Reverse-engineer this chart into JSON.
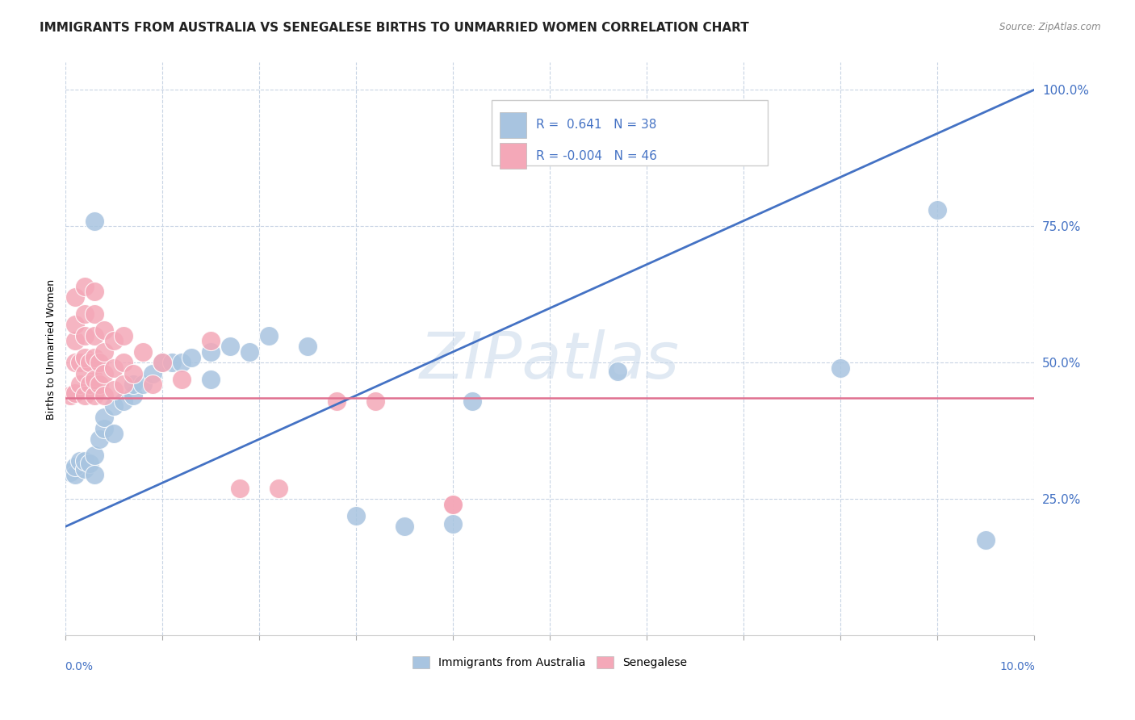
{
  "title": "IMMIGRANTS FROM AUSTRALIA VS SENEGALESE BIRTHS TO UNMARRIED WOMEN CORRELATION CHART",
  "source": "Source: ZipAtlas.com",
  "ylabel": "Births to Unmarried Women",
  "legend_label_blue": "Immigrants from Australia",
  "legend_label_pink": "Senegalese",
  "R_blue": 0.641,
  "N_blue": 38,
  "R_pink": -0.004,
  "N_pink": 46,
  "watermark": "ZIPatlas",
  "blue_scatter": [
    [
      0.0005,
      0.3
    ],
    [
      0.001,
      0.295
    ],
    [
      0.001,
      0.31
    ],
    [
      0.0015,
      0.32
    ],
    [
      0.002,
      0.305
    ],
    [
      0.002,
      0.32
    ],
    [
      0.0025,
      0.315
    ],
    [
      0.003,
      0.33
    ],
    [
      0.003,
      0.295
    ],
    [
      0.003,
      0.76
    ],
    [
      0.0035,
      0.36
    ],
    [
      0.004,
      0.38
    ],
    [
      0.004,
      0.4
    ],
    [
      0.005,
      0.37
    ],
    [
      0.005,
      0.42
    ],
    [
      0.006,
      0.43
    ],
    [
      0.007,
      0.44
    ],
    [
      0.007,
      0.46
    ],
    [
      0.008,
      0.46
    ],
    [
      0.009,
      0.48
    ],
    [
      0.01,
      0.5
    ],
    [
      0.011,
      0.5
    ],
    [
      0.012,
      0.5
    ],
    [
      0.013,
      0.51
    ],
    [
      0.015,
      0.52
    ],
    [
      0.015,
      0.47
    ],
    [
      0.017,
      0.53
    ],
    [
      0.019,
      0.52
    ],
    [
      0.021,
      0.55
    ],
    [
      0.025,
      0.53
    ],
    [
      0.03,
      0.22
    ],
    [
      0.035,
      0.2
    ],
    [
      0.04,
      0.205
    ],
    [
      0.042,
      0.43
    ],
    [
      0.057,
      0.485
    ],
    [
      0.08,
      0.49
    ],
    [
      0.09,
      0.78
    ],
    [
      0.095,
      0.175
    ]
  ],
  "pink_scatter": [
    [
      0.0005,
      0.44
    ],
    [
      0.001,
      0.445
    ],
    [
      0.001,
      0.5
    ],
    [
      0.001,
      0.54
    ],
    [
      0.001,
      0.57
    ],
    [
      0.001,
      0.62
    ],
    [
      0.0015,
      0.46
    ],
    [
      0.0015,
      0.5
    ],
    [
      0.002,
      0.44
    ],
    [
      0.002,
      0.48
    ],
    [
      0.002,
      0.51
    ],
    [
      0.002,
      0.55
    ],
    [
      0.002,
      0.59
    ],
    [
      0.002,
      0.64
    ],
    [
      0.0025,
      0.46
    ],
    [
      0.0025,
      0.5
    ],
    [
      0.003,
      0.44
    ],
    [
      0.003,
      0.47
    ],
    [
      0.003,
      0.51
    ],
    [
      0.003,
      0.55
    ],
    [
      0.003,
      0.59
    ],
    [
      0.003,
      0.63
    ],
    [
      0.0035,
      0.46
    ],
    [
      0.0035,
      0.5
    ],
    [
      0.004,
      0.44
    ],
    [
      0.004,
      0.48
    ],
    [
      0.004,
      0.52
    ],
    [
      0.004,
      0.56
    ],
    [
      0.005,
      0.45
    ],
    [
      0.005,
      0.49
    ],
    [
      0.005,
      0.54
    ],
    [
      0.006,
      0.46
    ],
    [
      0.006,
      0.5
    ],
    [
      0.006,
      0.55
    ],
    [
      0.007,
      0.48
    ],
    [
      0.008,
      0.52
    ],
    [
      0.009,
      0.46
    ],
    [
      0.01,
      0.5
    ],
    [
      0.012,
      0.47
    ],
    [
      0.015,
      0.54
    ],
    [
      0.018,
      0.27
    ],
    [
      0.022,
      0.27
    ],
    [
      0.028,
      0.43
    ],
    [
      0.032,
      0.43
    ],
    [
      0.04,
      0.24
    ],
    [
      0.04,
      0.24
    ]
  ],
  "blue_line": [
    [
      0.0,
      0.2
    ],
    [
      0.1,
      1.0
    ]
  ],
  "pink_line": [
    [
      0.0,
      0.435
    ],
    [
      0.1,
      0.435
    ]
  ],
  "xmin": 0.0,
  "xmax": 0.1,
  "ymin": 0.0,
  "ymax": 1.05,
  "ytick_vals": [
    0.25,
    0.5,
    0.75,
    1.0
  ],
  "ytick_labels": [
    "25.0%",
    "50.0%",
    "75.0%",
    "100.0%"
  ],
  "xtick_vals": [
    0.0,
    0.01,
    0.02,
    0.03,
    0.04,
    0.05,
    0.06,
    0.07,
    0.08,
    0.09,
    0.1
  ],
  "blue_color": "#a8c4e0",
  "pink_color": "#f4a8b8",
  "blue_line_color": "#4472c4",
  "pink_line_color": "#e07090",
  "grid_color": "#c8d4e4",
  "background_color": "#ffffff",
  "title_fontsize": 11,
  "axis_label_fontsize": 9,
  "legend_fontsize": 11
}
